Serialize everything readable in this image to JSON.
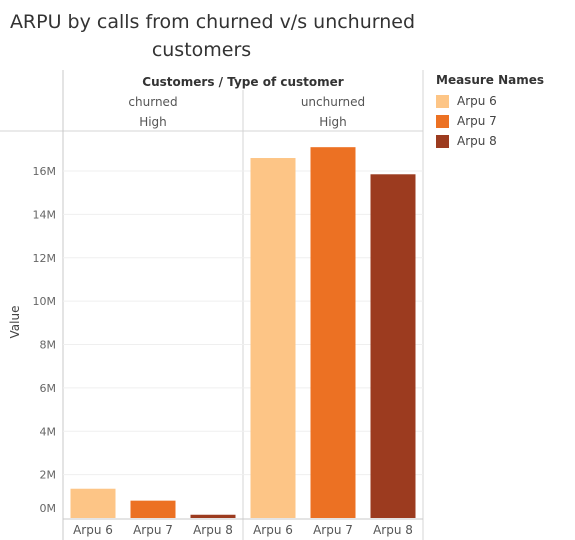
{
  "title_lines": [
    "ARPU by calls from churned v/s unchurned",
    "customers"
  ],
  "legend": {
    "title": "Measure Names",
    "items": [
      {
        "label": "Arpu 6",
        "color": "#fdc586"
      },
      {
        "label": "Arpu 7",
        "color": "#ec7123"
      },
      {
        "label": "Arpu 8",
        "color": "#9c3b1f"
      }
    ]
  },
  "chart_data": {
    "type": "bar",
    "title": "ARPU by calls from churned v/s unchurned customers",
    "column_header": "Customers / Type of customer",
    "ylabel": "Value",
    "ylim": [
      0,
      17800000
    ],
    "y_ticks": [
      0,
      2000000,
      4000000,
      6000000,
      8000000,
      10000000,
      12000000,
      14000000,
      16000000
    ],
    "y_tick_labels": [
      "0M",
      "2M",
      "4M",
      "6M",
      "8M",
      "10M",
      "12M",
      "14M",
      "16M"
    ],
    "groups": [
      {
        "type": "churned",
        "level": "High",
        "categories": [
          "Arpu 6",
          "Arpu 7",
          "Arpu 8"
        ],
        "values": [
          1350000,
          800000,
          150000
        ]
      },
      {
        "type": "unchurned",
        "level": "High",
        "categories": [
          "Arpu 6",
          "Arpu 7",
          "Arpu 8"
        ],
        "values": [
          16600000,
          17100000,
          15850000
        ]
      }
    ]
  }
}
